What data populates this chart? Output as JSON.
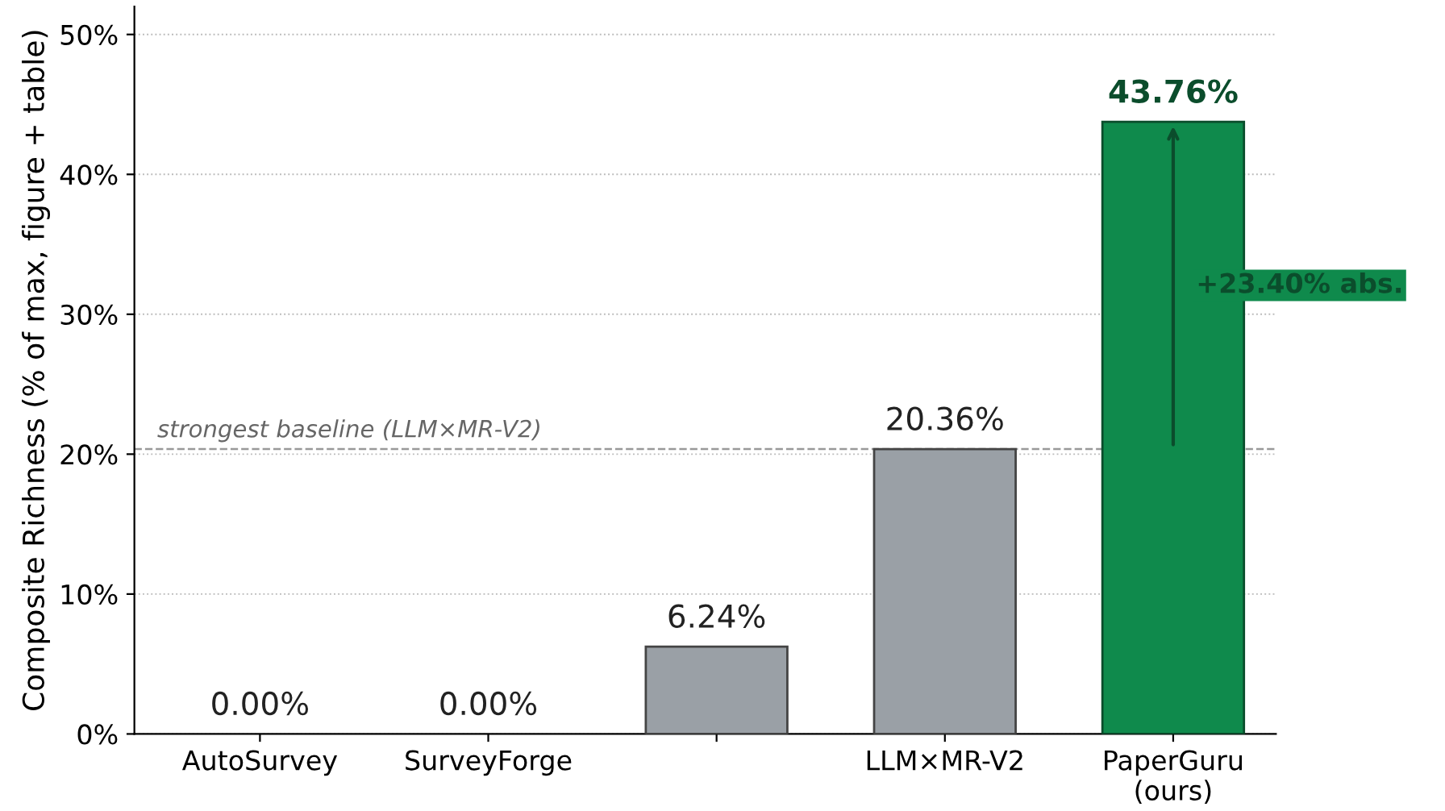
{
  "chart_data": {
    "type": "bar",
    "ylabel": "Composite Richness (% of max, figure + table)",
    "categories": [
      "AutoSurvey",
      "SurveyForge",
      null,
      "LLM×MR-V2",
      "PaperGuru\n(ours)"
    ],
    "values": [
      0,
      0,
      6.24,
      20.36,
      43.76
    ],
    "colors": [
      "#9aa0a6",
      "#9aa0a6",
      "#9aa0a6",
      "#9aa0a6",
      "#0f8a4c"
    ],
    "value_labels": [
      "0.00%",
      "0.00%",
      "6.24%",
      "20.36%",
      "43.76%"
    ],
    "ylim": [
      0,
      52
    ],
    "yticks": [
      {
        "value": 0,
        "label": "0%"
      },
      {
        "value": 10,
        "label": "10%"
      },
      {
        "value": 20,
        "label": "20%"
      },
      {
        "value": 30,
        "label": "30%"
      },
      {
        "value": 40,
        "label": "40%"
      },
      {
        "value": 50,
        "label": "50%"
      }
    ],
    "grid": "y",
    "ref_lines": [
      {
        "axis": "y",
        "value": 20.36,
        "label": "strongest baseline (LLM×MR-V2)",
        "color": "#999999",
        "line_style": "dashed"
      }
    ],
    "annotations": [
      "+23.40% abs."
    ]
  }
}
